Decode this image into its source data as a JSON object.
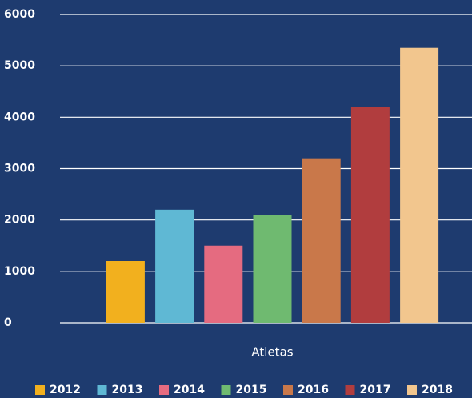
{
  "chart_data": {
    "type": "bar",
    "categories": [
      "Atletas"
    ],
    "series": [
      {
        "name": "2012",
        "color": "#f2b01e",
        "values": [
          1200
        ]
      },
      {
        "name": "2013",
        "color": "#5fb8d4",
        "values": [
          2200
        ]
      },
      {
        "name": "2014",
        "color": "#e56b80",
        "values": [
          1500
        ]
      },
      {
        "name": "2015",
        "color": "#6fba70",
        "values": [
          2100
        ]
      },
      {
        "name": "2016",
        "color": "#c9784a",
        "values": [
          3200
        ]
      },
      {
        "name": "2017",
        "color": "#b13d3e",
        "values": [
          4200
        ]
      },
      {
        "name": "2018",
        "color": "#f2c68e",
        "values": [
          5350
        ]
      }
    ],
    "ylim": [
      0,
      6000
    ],
    "yticks": [
      0,
      1000,
      2000,
      3000,
      4000,
      5000,
      6000
    ],
    "grid": true,
    "legend": "bottom"
  }
}
